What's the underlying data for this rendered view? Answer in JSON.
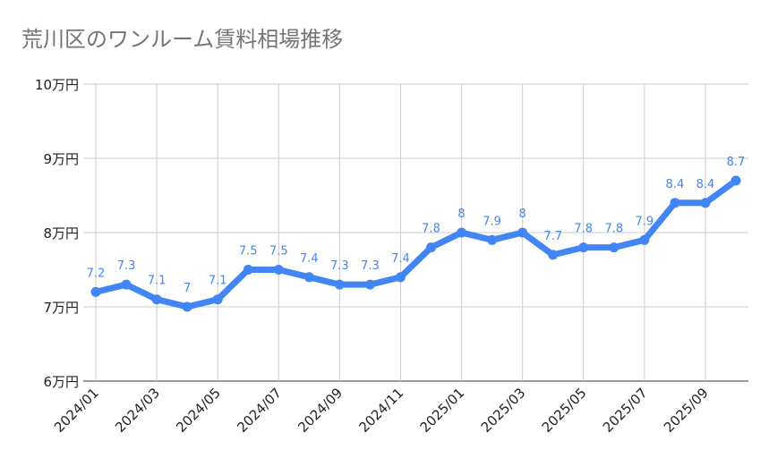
{
  "chart_data": {
    "type": "line",
    "title": "荒川区のワンルーム賃料相場推移",
    "xlabel": "",
    "ylabel": "",
    "categories": [
      "2024/01",
      "2024/02",
      "2024/03",
      "2024/04",
      "2024/05",
      "2024/06",
      "2024/07",
      "2024/08",
      "2024/09",
      "2024/10",
      "2024/11",
      "2024/12",
      "2025/01",
      "2025/02",
      "2025/03",
      "2025/04",
      "2025/05",
      "2025/06",
      "2025/07",
      "2025/08",
      "2025/09",
      "2025/10"
    ],
    "x_tick_labels": [
      "2024/01",
      "2024/03",
      "2024/05",
      "2024/07",
      "2024/09",
      "2024/11",
      "2025/01",
      "2025/03",
      "2025/05",
      "2025/07",
      "2025/09"
    ],
    "values": [
      7.2,
      7.3,
      7.1,
      7.0,
      7.1,
      7.5,
      7.5,
      7.4,
      7.3,
      7.3,
      7.4,
      7.8,
      8.0,
      7.9,
      8.0,
      7.7,
      7.8,
      7.8,
      7.9,
      8.4,
      8.4,
      8.7
    ],
    "data_labels": [
      "7.2",
      "7.3",
      "7.1",
      "7",
      "7.1",
      "7.5",
      "7.5",
      "7.4",
      "7.3",
      "7.3",
      "7.4",
      "7.8",
      "8",
      "7.9",
      "8",
      "7.7",
      "7.8",
      "7.8",
      "7.9",
      "8.4",
      "8.4",
      "8.7"
    ],
    "ylim": [
      6,
      10
    ],
    "y_ticks": [
      6,
      7,
      8,
      9,
      10
    ],
    "y_tick_labels": [
      "6万円",
      "7万円",
      "8万円",
      "9万円",
      "10万円"
    ],
    "grid": true,
    "legend": "none",
    "colors": {
      "line": "#4285F4",
      "label": "#4285F4",
      "grid": "#cccccc",
      "title": "#757575"
    }
  }
}
